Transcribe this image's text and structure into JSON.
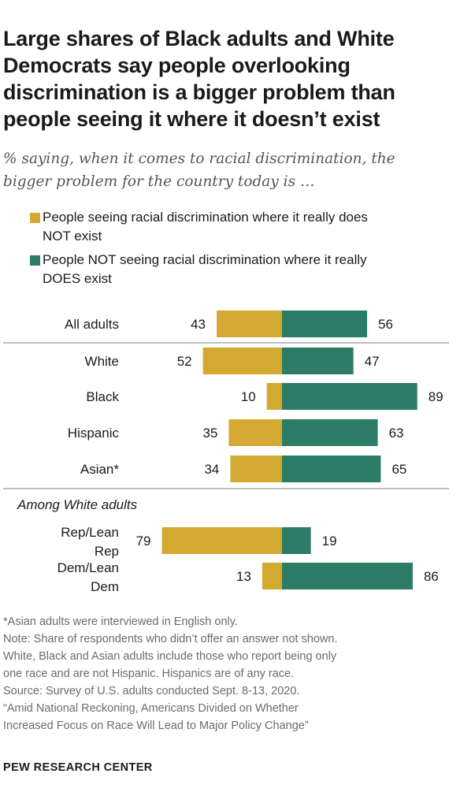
{
  "title": "Large shares of Black adults and White Democrats say people overlooking discrimination is a bigger problem than people seeing it where it doesn’t exist",
  "subtitle": "% saying, when it comes to racial discrimination, the bigger problem for the country today is …",
  "colors": {
    "seeing": "#d4a932",
    "not_seeing": "#2c7c67",
    "divider": "#a9a9a9"
  },
  "chart_data": {
    "type": "bar",
    "orientation": "horizontal-diverging",
    "series": [
      {
        "name": "People seeing racial discrimination where it really does NOT exist",
        "values": [
          43,
          52,
          10,
          35,
          34,
          79,
          13
        ]
      },
      {
        "name": "People NOT seeing racial discrimination where it really DOES exist",
        "values": [
          56,
          47,
          89,
          63,
          65,
          19,
          86
        ]
      }
    ],
    "rows": [
      {
        "label": "All adults",
        "left": 43,
        "right": 56
      },
      {
        "label": "White",
        "left": 52,
        "right": 47
      },
      {
        "label": "Black",
        "left": 10,
        "right": 89
      },
      {
        "label": "Hispanic",
        "left": 35,
        "right": 63
      },
      {
        "label": "Asian*",
        "left": 34,
        "right": 65
      },
      {
        "label": "Rep/Lean Rep",
        "label_lines": [
          "Rep/Lean",
          "Rep"
        ],
        "left": 79,
        "right": 19
      },
      {
        "label": "Dem/Lean Dem",
        "label_lines": [
          "Dem/Lean",
          "Dem"
        ],
        "left": 13,
        "right": 86
      }
    ],
    "group_label": "Among White adults"
  },
  "legend": [
    {
      "lines": [
        "People seeing racial discrimination where it really does",
        "NOT exist"
      ]
    },
    {
      "lines": [
        "People NOT seeing racial discrimination where it really",
        "DOES exist"
      ]
    }
  ],
  "notes": [
    "*Asian adults were interviewed in English only.",
    "Note: Share of respondents who didn’t offer an answer not shown.",
    "White, Black and Asian adults include those who report being only",
    "one race and are not Hispanic. Hispanics are of any race.",
    "Source: Survey of U.S. adults conducted Sept. 8-13, 2020.",
    "“Amid National Reckoning, Americans Divided on Whether",
    "Increased Focus on Race Will Lead to Major Policy Change”"
  ],
  "brand": "PEW RESEARCH CENTER"
}
